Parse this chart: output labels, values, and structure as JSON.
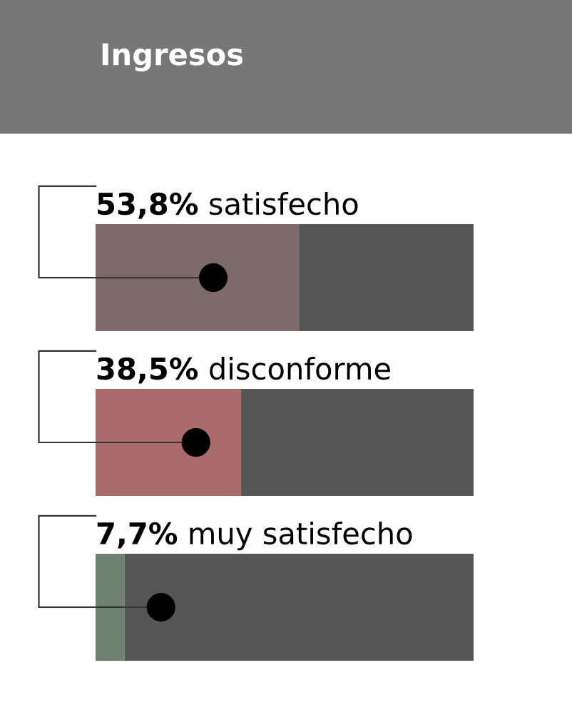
{
  "chart_data": {
    "type": "bar",
    "orientation": "horizontal",
    "stacked": true,
    "title": "Ingresos",
    "categories": [
      "satisfecho",
      "disconforme",
      "muy satisfecho"
    ],
    "series": [
      {
        "colors": [
          "#7d6a6a",
          "#a86a6a",
          "#6e8070"
        ],
        "values": [
          53.8,
          38.5,
          7.7
        ],
        "value_labels": [
          "53,8%",
          "38,5%",
          "7,7%"
        ]
      },
      {
        "color": "#555555",
        "values": [
          46.2,
          61.5,
          92.3
        ]
      }
    ]
  }
}
